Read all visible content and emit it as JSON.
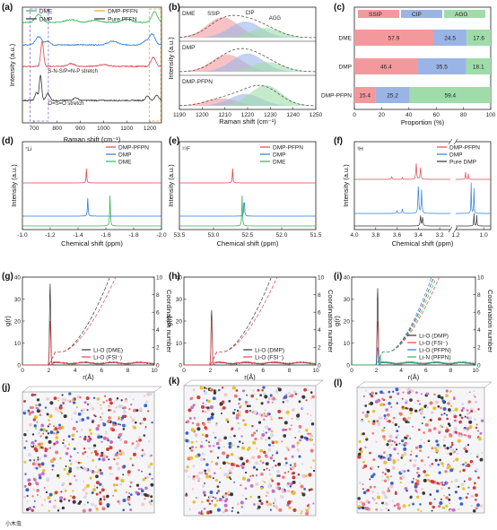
{
  "colors": {
    "red": "#e0454d",
    "blue": "#2a7bd6",
    "green": "#32b35a",
    "dark": "#333333",
    "orange": "#f0a030",
    "ssip": "#f3999d",
    "cip": "#9bb4e6",
    "agg": "#9fdcaa"
  },
  "chart_data": [
    {
      "panel": "a",
      "panel_label": "(a)",
      "type": "line",
      "xlabel": "Raman shift (cm⁻¹)",
      "ylabel": "Intensity (a.u.)",
      "xlim": [
        650,
        1250
      ],
      "xticks": [
        700,
        800,
        900,
        1000,
        1100,
        1200
      ],
      "series": [
        {
          "name": "DME"
        },
        {
          "name": "DMP"
        },
        {
          "name": "DMP-PFFN"
        },
        {
          "name": "Pure PFFN"
        }
      ],
      "annotations": [
        "S-N-S/P=N-P stretch",
        "O=S=O stretch"
      ]
    },
    {
      "panel": "b",
      "panel_label": "(b)",
      "type": "area",
      "xlabel": "Raman shift (cm⁻¹)",
      "ylabel": "Intensity (a.u.)",
      "xlim": [
        1190,
        1250
      ],
      "xticks": [
        1190,
        1200,
        1210,
        1220,
        1230,
        1240,
        1250
      ],
      "subplots": [
        {
          "name": "DME",
          "components": [
            "SSIP",
            "CIP",
            "AGG"
          ]
        },
        {
          "name": "DMP"
        },
        {
          "name": "DMP-PFPN"
        }
      ]
    },
    {
      "panel": "c",
      "panel_label": "(c)",
      "type": "bar",
      "orientation": "horizontal",
      "stacked": true,
      "xlabel": "Proportion (%)",
      "xlim": [
        0,
        100
      ],
      "xticks": [
        0,
        20,
        40,
        60,
        80,
        100
      ],
      "categories": [
        "DME",
        "DMP",
        "DMP-PFPN"
      ],
      "series": [
        {
          "name": "SSIP",
          "values": [
            57.9,
            46.4,
            15.4
          ]
        },
        {
          "name": "CIP",
          "values": [
            24.5,
            35.5,
            25.2
          ]
        },
        {
          "name": "AGG",
          "values": [
            17.6,
            18.1,
            59.4
          ]
        }
      ]
    },
    {
      "panel": "d",
      "panel_label": "(d)",
      "type": "line",
      "nucleus": "⁷Li",
      "xlabel": "Chemical shift (ppm)",
      "ylabel": "Intensity (a.u.)",
      "xlim": [
        -1.0,
        -2.0
      ],
      "xticks": [
        "-1.0",
        "-1.2",
        "-1.4",
        "-1.6",
        "-1.8",
        "-2.0"
      ],
      "series": [
        {
          "name": "DMP-PFPN",
          "peak": -1.46
        },
        {
          "name": "DMP",
          "peak": -1.47
        },
        {
          "name": "DME",
          "peak": -1.63
        }
      ]
    },
    {
      "panel": "e",
      "panel_label": "(e)",
      "type": "line",
      "nucleus": "¹⁹F",
      "xlabel": "Chemical shift (ppm)",
      "ylabel": "Intensity (a.u.)",
      "xlim": [
        53.5,
        51.5
      ],
      "xticks": [
        "53.5",
        "53.0",
        "52.5",
        "52.0",
        "51.5"
      ],
      "series": [
        {
          "name": "DMP-PFPN",
          "peak": 52.72
        },
        {
          "name": "DMP",
          "peak": 52.55
        },
        {
          "name": "DME",
          "peak": 52.58
        }
      ]
    },
    {
      "panel": "f",
      "panel_label": "(f)",
      "type": "line",
      "nucleus": "¹H",
      "xlabel": "Chemical shift (ppm)",
      "ylabel": "Intensity (a.u.)",
      "xticks": [
        "4.0",
        "3.8",
        "3.6",
        "3.4",
        "3.2",
        "1.2",
        "1.0"
      ],
      "series": [
        {
          "name": "DMP-PFPN"
        },
        {
          "name": "DMP"
        },
        {
          "name": "Pure DMP"
        }
      ]
    },
    {
      "panel": "g",
      "panel_label": "(g)",
      "type": "line",
      "xlabel": "r(Å)",
      "ylabel": "g(r)",
      "y2label": "Coordination number",
      "xlim": [
        0,
        10
      ],
      "ylim": [
        0,
        40
      ],
      "y2lim": [
        0,
        10
      ],
      "xticks": [
        "0",
        "2",
        "4",
        "6",
        "8",
        "10"
      ],
      "yticks": [
        "0",
        "10",
        "20",
        "30",
        "40"
      ],
      "y2ticks": [
        "0",
        "2",
        "4",
        "6",
        "8",
        "10"
      ],
      "series": [
        {
          "name": "Li-O (DME)",
          "peak_r": 2.1,
          "peak_g": 37
        },
        {
          "name": "Li-O (FSI⁻)",
          "peak_r": 2.1,
          "peak_g": 20
        }
      ]
    },
    {
      "panel": "h",
      "panel_label": "(h)",
      "type": "line",
      "xlabel": "r(Å)",
      "ylabel": "g(r)",
      "y2label": "Coordination number",
      "xlim": [
        0,
        10
      ],
      "ylim": [
        0,
        40
      ],
      "y2lim": [
        0,
        10
      ],
      "xticks": [
        "0",
        "2",
        "4",
        "6",
        "8",
        "10"
      ],
      "yticks": [
        "0",
        "10",
        "20",
        "30",
        "40"
      ],
      "y2ticks": [
        "0",
        "2",
        "4",
        "6",
        "8",
        "10"
      ],
      "series": [
        {
          "name": "Li-O (DMP)",
          "peak_r": 2.1,
          "peak_g": 25
        },
        {
          "name": "Li-O (FSI⁻)",
          "peak_r": 2.1,
          "peak_g": 20
        }
      ]
    },
    {
      "panel": "i",
      "panel_label": "(i)",
      "type": "line",
      "xlabel": "r(Å)",
      "ylabel": "g(r)",
      "y2label": "Coordination number",
      "xlim": [
        0,
        10
      ],
      "ylim": [
        0,
        40
      ],
      "y2lim": [
        0,
        10
      ],
      "xticks": [
        "0",
        "2",
        "4",
        "6",
        "8",
        "10"
      ],
      "yticks": [
        "0",
        "10",
        "20",
        "30",
        "40"
      ],
      "y2ticks": [
        "0",
        "2",
        "4",
        "6",
        "8",
        "10"
      ],
      "series": [
        {
          "name": "Li-O (DMP)",
          "peak_r": 2.1,
          "peak_g": 35
        },
        {
          "name": "Li-O (FSI⁻)",
          "peak_r": 2.1,
          "peak_g": 20
        },
        {
          "name": "Li-O (PFPN)",
          "peak_r": 2.1,
          "peak_g": 8
        },
        {
          "name": "Li-N (PFPN)",
          "peak_r": 2.3,
          "peak_g": 3
        }
      ]
    }
  ],
  "snapshots": [
    {
      "label": "(j)"
    },
    {
      "label": "(k)"
    },
    {
      "label": "(l)"
    }
  ],
  "watermark": "小木虫"
}
